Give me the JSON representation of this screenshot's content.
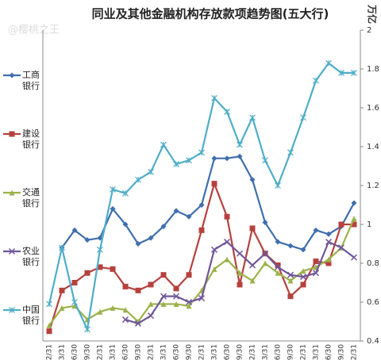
{
  "chart_data": {
    "type": "line",
    "title": "同业及其他金融机构存放款项趋势图(五大行)",
    "watermark": "@樱桃之王",
    "y_label": "万亿",
    "categories": [
      "12/31",
      "3/31",
      "6/30",
      "9/30",
      "12/31",
      "3/31",
      "6/30",
      "9/30",
      "12/31",
      "3/31",
      "6/30",
      "9/30",
      "12/31",
      "3/31",
      "6/30",
      "9/30",
      "12/31",
      "3/31",
      "6/30",
      "9/30",
      "12/31",
      "3/31",
      "6/30",
      "9/30",
      "12/31"
    ],
    "ylim": [
      0.4,
      2
    ],
    "yticks": [
      0.4,
      0.6,
      0.8,
      1,
      1.2,
      1.4,
      1.6,
      1.8,
      2
    ],
    "series": [
      {
        "name": "工商银行",
        "color": "#3f6fae",
        "marker": "diamond",
        "values": [
          null,
          0.88,
          0.97,
          0.92,
          0.93,
          1.08,
          1.0,
          0.9,
          0.93,
          0.99,
          1.07,
          1.04,
          1.1,
          1.34,
          1.34,
          1.35,
          1.23,
          1.01,
          0.91,
          0.89,
          0.87,
          0.97,
          0.95,
          0.99,
          1.11
        ]
      },
      {
        "name": "建设银行",
        "color": "#b5413d",
        "marker": "square",
        "values": [
          0.45,
          0.66,
          0.7,
          0.75,
          0.78,
          0.77,
          0.68,
          0.66,
          0.69,
          0.74,
          0.67,
          0.74,
          0.97,
          1.21,
          1.04,
          0.69,
          0.98,
          0.85,
          0.79,
          0.63,
          0.69,
          0.81,
          0.8,
          1.0,
          1.0
        ]
      },
      {
        "name": "交通银行",
        "color": "#9bb24a",
        "marker": "triangle",
        "values": [
          0.48,
          0.57,
          0.58,
          0.51,
          0.55,
          0.57,
          0.56,
          0.5,
          0.59,
          0.59,
          0.59,
          0.58,
          0.66,
          0.77,
          0.82,
          0.75,
          0.71,
          0.8,
          0.75,
          0.71,
          0.76,
          0.78,
          0.82,
          0.88,
          1.03
        ]
      },
      {
        "name": "农业银行",
        "color": "#6f569a",
        "marker": "x",
        "values": [
          null,
          null,
          null,
          null,
          null,
          null,
          0.51,
          0.49,
          0.53,
          0.63,
          0.63,
          0.6,
          0.62,
          0.87,
          0.91,
          0.85,
          0.79,
          0.85,
          0.78,
          0.74,
          0.73,
          0.75,
          0.91,
          0.88,
          0.83
        ]
      },
      {
        "name": "中国银行",
        "color": "#4fadc8",
        "marker": "star",
        "values": [
          0.59,
          0.88,
          0.6,
          0.46,
          0.87,
          1.18,
          1.16,
          1.23,
          1.27,
          1.41,
          1.31,
          1.33,
          1.37,
          1.65,
          1.58,
          1.41,
          1.55,
          1.33,
          1.2,
          1.37,
          1.55,
          1.74,
          1.83,
          1.78,
          1.78
        ]
      }
    ]
  }
}
